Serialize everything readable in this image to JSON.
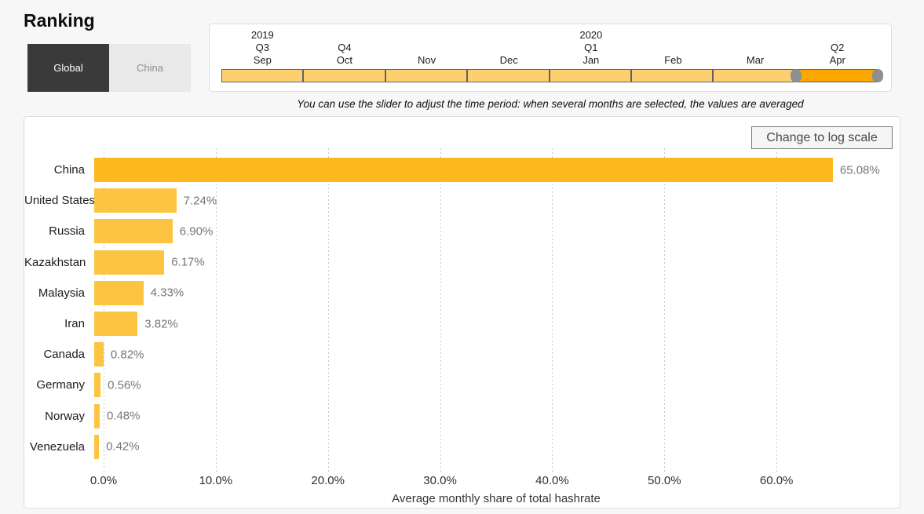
{
  "title": "Ranking",
  "toggle": {
    "global_label": "Global",
    "china_label": "China",
    "selected": "Global"
  },
  "slider": {
    "caption": "You can use the slider to adjust the time period: when several months are selected, the values are averaged",
    "months": [
      {
        "year": "2019",
        "quarter": "Q3",
        "month": "Sep",
        "selected": false
      },
      {
        "year": "",
        "quarter": "Q4",
        "month": "Oct",
        "selected": false
      },
      {
        "year": "",
        "quarter": "",
        "month": "Nov",
        "selected": false
      },
      {
        "year": "",
        "quarter": "",
        "month": "Dec",
        "selected": false
      },
      {
        "year": "2020",
        "quarter": "Q1",
        "month": "Jan",
        "selected": false
      },
      {
        "year": "",
        "quarter": "",
        "month": "Feb",
        "selected": false
      },
      {
        "year": "",
        "quarter": "",
        "month": "Mar",
        "selected": false
      },
      {
        "year": "",
        "quarter": "Q2",
        "month": "Apr",
        "selected": true
      }
    ],
    "colors": {
      "unselected": "#fecf70",
      "selected": "#fda600",
      "handle": "#8f8f8f",
      "border": "#5f6368"
    }
  },
  "chart": {
    "log_button_label": "Change to log scale"
  },
  "chart_data": {
    "type": "bar",
    "orientation": "horizontal",
    "title": "",
    "categories": [
      "China",
      "United States",
      "Russia",
      "Kazakhstan",
      "Malaysia",
      "Iran",
      "Canada",
      "Germany",
      "Norway",
      "Venezuela"
    ],
    "values": [
      65.08,
      7.24,
      6.9,
      6.17,
      4.33,
      3.82,
      0.82,
      0.56,
      0.48,
      0.42
    ],
    "value_labels": [
      "65.08%",
      "7.24%",
      "6.90%",
      "6.17%",
      "4.33%",
      "3.82%",
      "0.82%",
      "0.56%",
      "0.48%",
      "0.42%"
    ],
    "xlabel": "Average monthly share of total hashrate",
    "x_ticks": [
      "0.0%",
      "10.0%",
      "20.0%",
      "30.0%",
      "40.0%",
      "50.0%",
      "60.0%"
    ],
    "x_tick_values": [
      0,
      10,
      20,
      30,
      40,
      50,
      60
    ],
    "xlim": [
      0,
      70
    ],
    "grid": "dotted-vertical",
    "legend": "none",
    "bar_color": "#fdc442",
    "highlight_color": "#feb71c",
    "highlighted_category": "China"
  }
}
